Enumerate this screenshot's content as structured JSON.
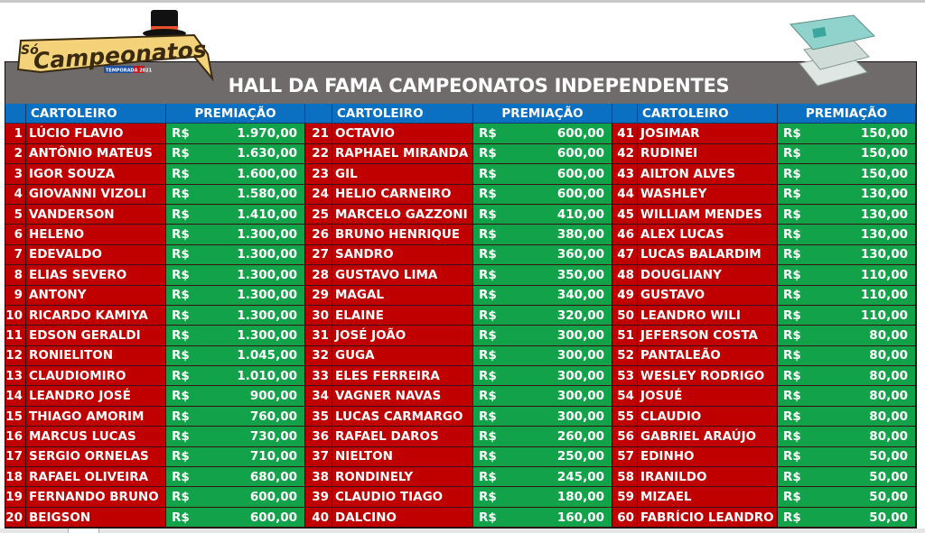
{
  "title": "HALL DA FAMA CAMPEONATOS INDEPENDENTES",
  "logo": {
    "text_top": "Só",
    "text_main": "Campeonatos",
    "badge": "TEMPORADA 2021"
  },
  "headers": {
    "name": "CARTOLEIRO",
    "prize": "PREMIAÇÃO"
  },
  "currency": "R$",
  "colors": {
    "header": "#0b6fc2",
    "name_bg": "#c00000",
    "prize_bg": "#12a34a",
    "title_bg": "#6f6b6b"
  },
  "blocks": [
    [
      [
        "1",
        "LÚCIO FLAVIO",
        "1.970,00"
      ],
      [
        "2",
        "ANTÔNIO MATEUS",
        "1.630,00"
      ],
      [
        "3",
        "IGOR SOUZA",
        "1.600,00"
      ],
      [
        "4",
        "GIOVANNI VIZOLI",
        "1.580,00"
      ],
      [
        "5",
        "VANDERSON",
        "1.410,00"
      ],
      [
        "6",
        "HELENO",
        "1.300,00"
      ],
      [
        "7",
        "EDEVALDO",
        "1.300,00"
      ],
      [
        "8",
        "ELIAS SEVERO",
        "1.300,00"
      ],
      [
        "9",
        "ANTONY",
        "1.300,00"
      ],
      [
        "10",
        "RICARDO KAMIYA",
        "1.300,00"
      ],
      [
        "11",
        "EDSON GERALDI",
        "1.300,00"
      ],
      [
        "12",
        "RONIELITON",
        "1.045,00"
      ],
      [
        "13",
        "CLAUDIOMIRO",
        "1.010,00"
      ],
      [
        "14",
        "LEANDRO JOSÉ",
        "900,00"
      ],
      [
        "15",
        "THIAGO AMORIM",
        "760,00"
      ],
      [
        "16",
        "MARCUS LUCAS",
        "730,00"
      ],
      [
        "17",
        "SERGIO ORNELAS",
        "710,00"
      ],
      [
        "18",
        "RAFAEL OLIVEIRA",
        "680,00"
      ],
      [
        "19",
        "FERNANDO BRUNO",
        "600,00"
      ],
      [
        "20",
        "BEIGSON",
        "600,00"
      ]
    ],
    [
      [
        "21",
        "OCTAVIO",
        "600,00"
      ],
      [
        "22",
        "RAPHAEL MIRANDA",
        "600,00"
      ],
      [
        "23",
        "GIL",
        "600,00"
      ],
      [
        "24",
        "HELIO CARNEIRO",
        "600,00"
      ],
      [
        "25",
        "MARCELO GAZZONI",
        "410,00"
      ],
      [
        "26",
        "BRUNO HENRIQUE",
        "380,00"
      ],
      [
        "27",
        "SANDRO",
        "360,00"
      ],
      [
        "28",
        "GUSTAVO LIMA",
        "350,00"
      ],
      [
        "29",
        "MAGAL",
        "340,00"
      ],
      [
        "30",
        "ELAINE",
        "320,00"
      ],
      [
        "31",
        "JOSÉ JOÃO",
        "300,00"
      ],
      [
        "32",
        "GUGA",
        "300,00"
      ],
      [
        "33",
        "ELES FERREIRA",
        "300,00"
      ],
      [
        "34",
        "VAGNER NAVAS",
        "300,00"
      ],
      [
        "35",
        "LUCAS CARMARGO",
        "300,00"
      ],
      [
        "36",
        "RAFAEL DAROS",
        "260,00"
      ],
      [
        "37",
        "NIELTON",
        "250,00"
      ],
      [
        "38",
        "RONDINELY",
        "245,00"
      ],
      [
        "39",
        "CLAUDIO TIAGO",
        "180,00"
      ],
      [
        "40",
        "DALCINO",
        "160,00"
      ]
    ],
    [
      [
        "41",
        "JOSIMAR",
        "150,00"
      ],
      [
        "42",
        "RUDINEI",
        "150,00"
      ],
      [
        "43",
        "AILTON ALVES",
        "150,00"
      ],
      [
        "44",
        "WASHLEY",
        "130,00"
      ],
      [
        "45",
        "WILLIAM MENDES",
        "130,00"
      ],
      [
        "46",
        "ALEX LUCAS",
        "130,00"
      ],
      [
        "47",
        "LUCAS BALARDIM",
        "130,00"
      ],
      [
        "48",
        "DOUGLIANY",
        "110,00"
      ],
      [
        "49",
        "GUSTAVO",
        "110,00"
      ],
      [
        "50",
        "LEANDRO WILI",
        "110,00"
      ],
      [
        "51",
        "JEFERSON COSTA",
        "80,00"
      ],
      [
        "52",
        "PANTALEÃO",
        "80,00"
      ],
      [
        "53",
        "WESLEY RODRIGO",
        "80,00"
      ],
      [
        "54",
        "JOSUÉ",
        "80,00"
      ],
      [
        "55",
        "CLAUDIO",
        "80,00"
      ],
      [
        "56",
        "GABRIEL ARAÚJO",
        "80,00"
      ],
      [
        "57",
        "EDINHO",
        "50,00"
      ],
      [
        "58",
        "IRANILDO",
        "50,00"
      ],
      [
        "59",
        "MIZAEL",
        "50,00"
      ],
      [
        "60",
        "FABRÍCIO LEANDRO",
        "50,00"
      ]
    ]
  ]
}
